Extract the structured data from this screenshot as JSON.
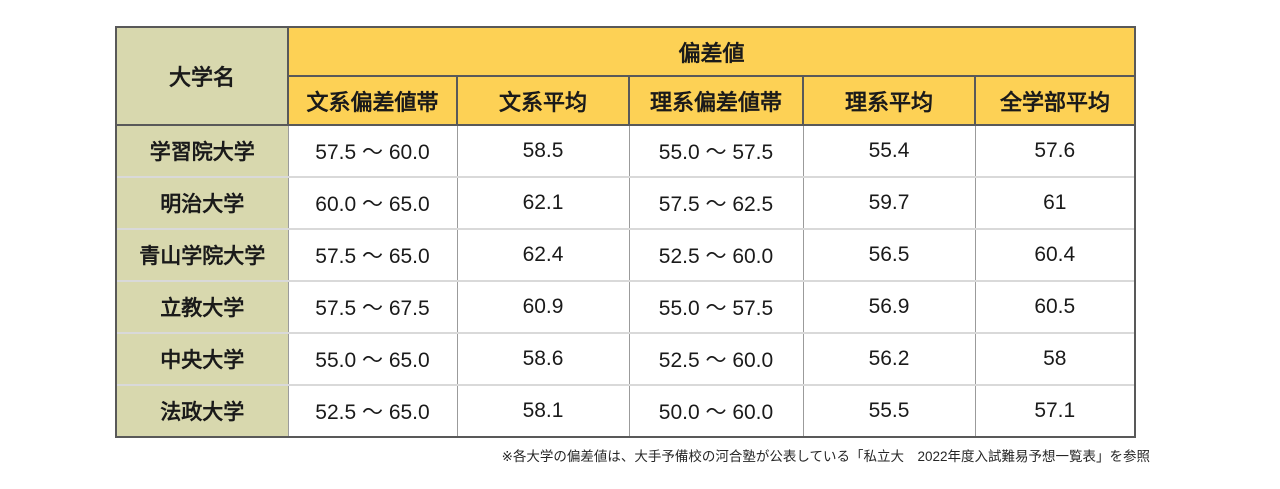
{
  "table": {
    "corner_header": "大学名",
    "group_header": "偏差値",
    "columns": [
      {
        "key": "bunkei_range",
        "label": "文系偏差値帯"
      },
      {
        "key": "bunkei_avg",
        "label": "文系平均"
      },
      {
        "key": "rikei_range",
        "label": "理系偏差値帯"
      },
      {
        "key": "rikei_avg",
        "label": "理系平均"
      },
      {
        "key": "all_avg",
        "label": "全学部平均"
      }
    ],
    "rows": [
      {
        "name": "学習院大学",
        "bunkei_range": "57.5 ～ 60.0",
        "bunkei_avg": "58.5",
        "rikei_range": "55.0 ～ 57.5",
        "rikei_avg": "55.4",
        "all_avg": "57.6"
      },
      {
        "name": "明治大学",
        "bunkei_range": "60.0 ～ 65.0",
        "bunkei_avg": "62.1",
        "rikei_range": "57.5 ～ 62.5",
        "rikei_avg": "59.7",
        "all_avg": "61"
      },
      {
        "name": "青山学院大学",
        "bunkei_range": "57.5 ～ 65.0",
        "bunkei_avg": "62.4",
        "rikei_range": "52.5 ～ 60.0",
        "rikei_avg": "56.5",
        "all_avg": "60.4"
      },
      {
        "name": "立教大学",
        "bunkei_range": "57.5 ～ 67.5",
        "bunkei_avg": "60.9",
        "rikei_range": "55.0 ～ 57.5",
        "rikei_avg": "56.9",
        "all_avg": "60.5"
      },
      {
        "name": "中央大学",
        "bunkei_range": "55.0 ～ 65.0",
        "bunkei_avg": "58.6",
        "rikei_range": "52.5 ～ 60.0",
        "rikei_avg": "56.2",
        "all_avg": "58"
      },
      {
        "name": "法政大学",
        "bunkei_range": "52.5 ～ 65.0",
        "bunkei_avg": "58.1",
        "rikei_range": "50.0 ～ 60.0",
        "rikei_avg": "55.5",
        "all_avg": "57.1"
      }
    ]
  },
  "footnote": "※各大学の偏差値は、大手予備校の河合塾が公表している「私立大　2022年度入試難易予想一覧表」を参照",
  "colors": {
    "header_yellow": "#fdd155",
    "header_green": "#d8d8ae",
    "border_dark": "#595959",
    "grid_vertical": "#9b9b9b",
    "grid_horizontal": "#d9d9d9",
    "text_main": "#1a1a1a",
    "text_footnote": "#262626"
  }
}
